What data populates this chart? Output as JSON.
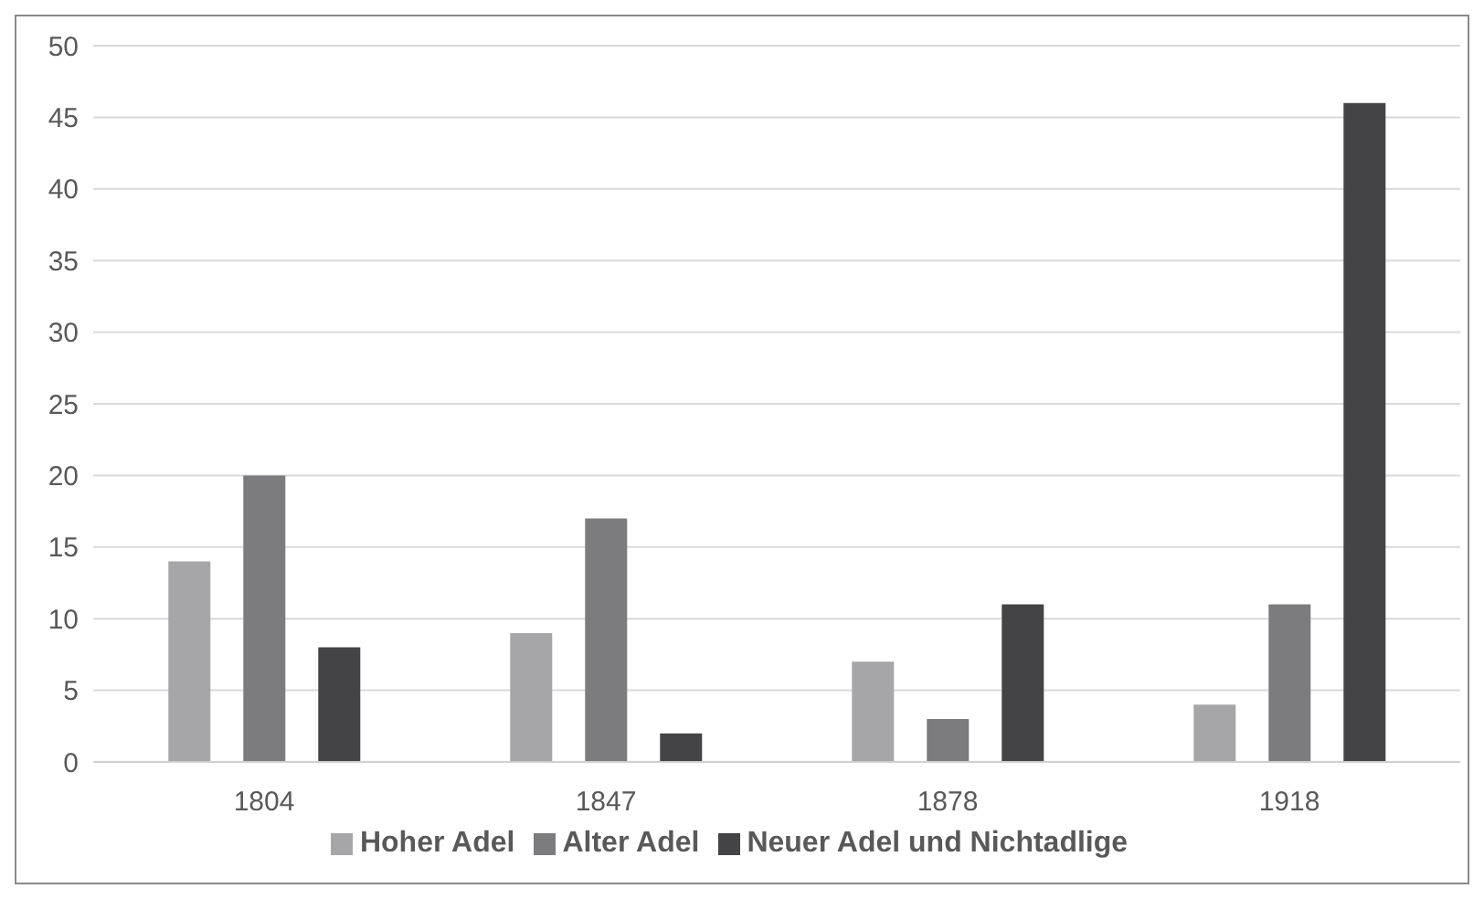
{
  "chart_data": {
    "type": "bar",
    "categories": [
      "1804",
      "1847",
      "1878",
      "1918"
    ],
    "series": [
      {
        "name": "Hoher Adel",
        "color": "#a6a6a8",
        "values": [
          14,
          9,
          7,
          4
        ]
      },
      {
        "name": "Alter Adel",
        "color": "#7c7c7e",
        "values": [
          20,
          17,
          3,
          11
        ]
      },
      {
        "name": "Neuer Adel und Nichtadlige",
        "color": "#444446",
        "values": [
          8,
          2,
          11,
          46
        ]
      }
    ],
    "ylim": [
      0,
      50
    ],
    "yticks": [
      0,
      5,
      10,
      15,
      20,
      25,
      30,
      35,
      40,
      45,
      50
    ],
    "grid": "y",
    "legend": "bottom"
  }
}
